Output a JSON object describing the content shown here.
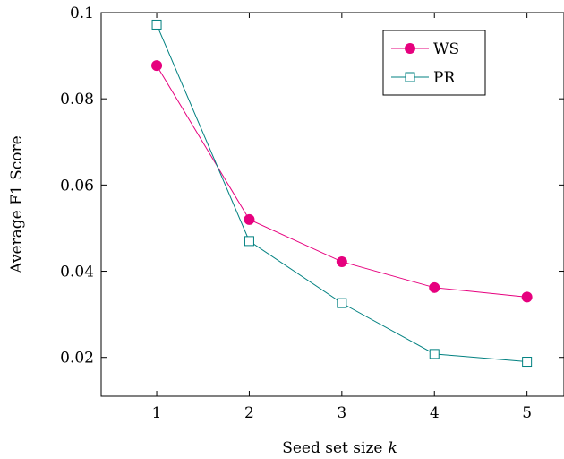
{
  "chart_data": {
    "type": "line",
    "title": "",
    "xlabel": "Seed set size",
    "xlabel_var": "k",
    "ylabel": "Average F1 Score",
    "x": [
      1,
      2,
      3,
      4,
      5
    ],
    "xlim": [
      0.4,
      5.4
    ],
    "ylim": [
      0.011,
      0.1
    ],
    "x_ticks": [
      "1",
      "2",
      "3",
      "4",
      "5"
    ],
    "y_ticks": [
      {
        "value": 0.02,
        "label": "0.02"
      },
      {
        "value": 0.04,
        "label": "0.04"
      },
      {
        "value": 0.06,
        "label": "0.06"
      },
      {
        "value": 0.08,
        "label": "0.08"
      },
      {
        "value": 0.1,
        "label": "0.1"
      }
    ],
    "grid": false,
    "legend_position": "top-right",
    "series": [
      {
        "name": "WS",
        "values": [
          0.0877,
          0.052,
          0.0422,
          0.0362,
          0.034
        ],
        "color": "#e6007e",
        "marker": "filled-circle"
      },
      {
        "name": "PR",
        "values": [
          0.0972,
          0.047,
          0.0326,
          0.0208,
          0.019
        ],
        "color": "#008080",
        "marker": "open-square"
      }
    ]
  }
}
